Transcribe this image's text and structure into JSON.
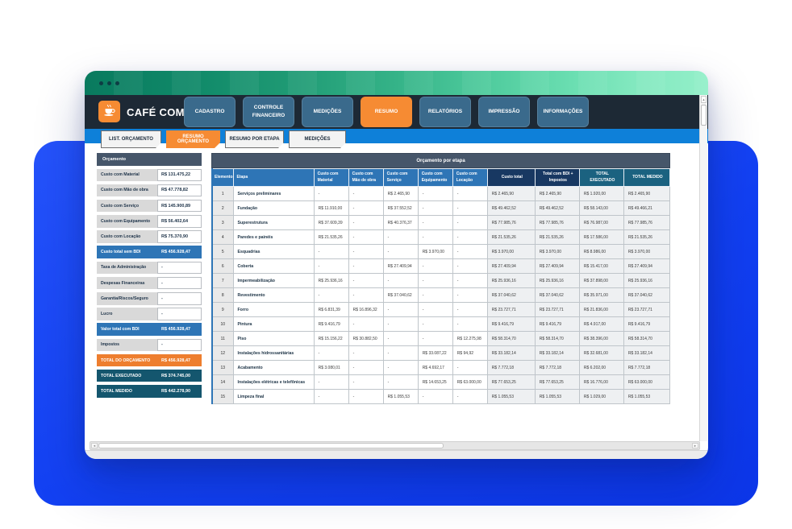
{
  "brand": {
    "title": "CAFÉ COM CAD",
    "logo_icon": "coffee-cup-icon"
  },
  "nav": {
    "tabs": [
      {
        "label": "CADASTRO",
        "active": false
      },
      {
        "label": "CONTROLE FINANCEIRO",
        "active": false
      },
      {
        "label": "MEDIÇÕES",
        "active": false
      },
      {
        "label": "RESUMO",
        "active": true
      },
      {
        "label": "RELATÓRIOS",
        "active": false
      },
      {
        "label": "IMPRESSÃO",
        "active": false
      },
      {
        "label": "INFORMAÇÕES",
        "active": false
      }
    ]
  },
  "subnav": {
    "tabs": [
      {
        "label": "LIST. ORÇAMENTO",
        "active": false
      },
      {
        "label": "RESUMO ORÇAMENTO",
        "active": true
      },
      {
        "label": "RESUMO POR ETAPA",
        "active": false
      },
      {
        "label": "MEDIÇÕES",
        "active": false
      }
    ]
  },
  "summary_panel": {
    "header": "Orçamento",
    "rows": [
      {
        "label": "Custo com Material",
        "value": "R$ 131.475,22",
        "style": "plain"
      },
      {
        "label": "Custo com Mão de obra",
        "value": "R$ 47.778,82",
        "style": "plain"
      },
      {
        "label": "Custo com Serviço",
        "value": "R$ 145.900,89",
        "style": "plain"
      },
      {
        "label": "Custo com Equipamento",
        "value": "R$ 56.402,64",
        "style": "plain"
      },
      {
        "label": "Custo com Locação",
        "value": "R$ 75.370,90",
        "style": "plain"
      },
      {
        "label": "Custo total sem BDI",
        "value": "R$ 456.928,47",
        "style": "blue"
      },
      {
        "label": "Taxa de Administração",
        "value": "-",
        "style": "plain"
      },
      {
        "label": "Despesas Financeiras",
        "value": "-",
        "style": "plain"
      },
      {
        "label": "Garantia/Riscos/Seguro",
        "value": "-",
        "style": "plain"
      },
      {
        "label": "Lucro",
        "value": "-",
        "style": "plain"
      },
      {
        "label": "Valor total com BDI",
        "value": "R$ 456.928,47",
        "style": "blue"
      },
      {
        "label": "Impostos",
        "value": "-",
        "style": "plain"
      },
      {
        "label": "TOTAL DO ORÇAMENTO",
        "value": "R$ 456.928,47",
        "style": "orange"
      },
      {
        "label": "TOTAL EXECUTADO",
        "value": "R$ 374.745,00",
        "style": "dark"
      },
      {
        "label": "TOTAL MEDIDO",
        "value": "R$ 442.278,90",
        "style": "dark"
      }
    ]
  },
  "etapa_table": {
    "title": "Orçamento por etapa",
    "columns": [
      {
        "label": "Elemento",
        "group": "blue center"
      },
      {
        "label": "Etapa",
        "group": "blue"
      },
      {
        "label": "Custo com Material",
        "group": "blue"
      },
      {
        "label": "Custo com Mão de obra",
        "group": "blue"
      },
      {
        "label": "Custo com Serviço",
        "group": "blue"
      },
      {
        "label": "Custo com Equipamento",
        "group": "blue"
      },
      {
        "label": "Custo com Locação",
        "group": "blue"
      },
      {
        "label": "Custo total",
        "group": "navy"
      },
      {
        "label": "Total com BDI + Impostos",
        "group": "navy"
      },
      {
        "label": "TOTAL EXECUTADO",
        "group": "teal"
      },
      {
        "label": "TOTAL MEDIDO",
        "group": "teal"
      }
    ],
    "rows": [
      [
        "1",
        "Serviços preliminares",
        "-",
        "-",
        "R$ 2.465,90",
        "-",
        "-",
        "R$ 2.465,90",
        "R$ 2.465,90",
        "R$ 1.920,00",
        "R$ 2.465,90"
      ],
      [
        "2",
        "Fundação",
        "R$ 11.910,00",
        "-",
        "R$ 37.552,52",
        "-",
        "-",
        "R$ 49.462,52",
        "R$ 49.462,52",
        "R$ 58.143,00",
        "R$ 49.466,21"
      ],
      [
        "3",
        "Superestrutura",
        "R$ 37.609,39",
        "-",
        "R$ 40.376,37",
        "-",
        "-",
        "R$ 77.985,76",
        "R$ 77.985,76",
        "R$ 76.987,00",
        "R$ 77.985,76"
      ],
      [
        "4",
        "Paredes e painéis",
        "R$ 21.535,26",
        "-",
        "-",
        "-",
        "-",
        "R$ 21.535,26",
        "R$ 21.535,26",
        "R$ 17.586,00",
        "R$ 21.535,26"
      ],
      [
        "5",
        "Esquadrias",
        "-",
        "-",
        "-",
        "R$ 3.970,00",
        "-",
        "R$ 3.970,00",
        "R$ 3.970,00",
        "R$ 8.986,00",
        "R$ 3.970,00"
      ],
      [
        "6",
        "Coberta",
        "-",
        "-",
        "R$ 27.409,94",
        "-",
        "-",
        "R$ 27.409,94",
        "R$ 27.409,94",
        "R$ 15.417,00",
        "R$ 27.409,94"
      ],
      [
        "7",
        "Impermeabilização",
        "R$ 25.936,16",
        "-",
        "-",
        "-",
        "-",
        "R$ 25.936,16",
        "R$ 25.936,16",
        "R$ 37.898,00",
        "R$ 25.936,16"
      ],
      [
        "8",
        "Revestimento",
        "-",
        "-",
        "R$ 37.040,62",
        "-",
        "-",
        "R$ 37.040,62",
        "R$ 37.040,62",
        "R$ 35.971,00",
        "R$ 37.040,62"
      ],
      [
        "9",
        "Forro",
        "R$ 6.831,39",
        "R$ 16.896,32",
        "-",
        "-",
        "-",
        "R$ 23.727,71",
        "R$ 23.727,71",
        "R$ 21.836,00",
        "R$ 23.727,71"
      ],
      [
        "10",
        "Pintura",
        "R$ 9.416,79",
        "-",
        "-",
        "-",
        "-",
        "R$ 9.416,79",
        "R$ 9.416,79",
        "R$ 4.917,00",
        "R$ 9.416,79"
      ],
      [
        "11",
        "Piso",
        "R$ 15.156,22",
        "R$ 30.882,50",
        "-",
        "-",
        "R$ 12.275,98",
        "R$ 58.314,70",
        "R$ 58.314,70",
        "R$ 38.396,00",
        "R$ 58.314,70"
      ],
      [
        "12",
        "Instalações hidrossanitárias",
        "-",
        "-",
        "-",
        "R$ 33.087,22",
        "R$ 94,92",
        "R$ 33.182,14",
        "R$ 33.182,14",
        "R$ 32.681,00",
        "R$ 33.182,14"
      ],
      [
        "13",
        "Acabamento",
        "R$ 3.080,01",
        "-",
        "-",
        "R$ 4.692,17",
        "-",
        "R$ 7.772,18",
        "R$ 7.772,18",
        "R$ 6.202,00",
        "R$ 7.772,18"
      ],
      [
        "14",
        "Instalações elétricas e telefônicas",
        "-",
        "-",
        "-",
        "R$ 14.653,25",
        "R$ 63.000,00",
        "R$ 77.653,25",
        "R$ 77.653,25",
        "R$ 16.776,00",
        "R$ 63.000,00"
      ],
      [
        "15",
        "Limpeza final",
        "-",
        "-",
        "R$ 1.055,53",
        "-",
        "-",
        "R$ 1.055,53",
        "R$ 1.055,53",
        "R$ 1.029,00",
        "R$ 1.055,53"
      ]
    ]
  },
  "colors": {
    "accent_orange": "#f68b33",
    "header_blue": "#2e75b6",
    "header_navy": "#183862",
    "header_teal": "#1b6280",
    "slate_header": "#46566a",
    "nav_dark": "#1d2935",
    "subbar_blue": "#0e80d9",
    "backdrop_blue": "#1240f2",
    "titlebar_green_start": "#097a5e",
    "titlebar_green_end": "#93efc9"
  },
  "icons": {
    "logo": "coffee-cup-icon",
    "v_scroll": "up-arrow-icon",
    "h_scroll_left": "left-arrow-icon",
    "h_scroll_right": "right-arrow-icon"
  }
}
